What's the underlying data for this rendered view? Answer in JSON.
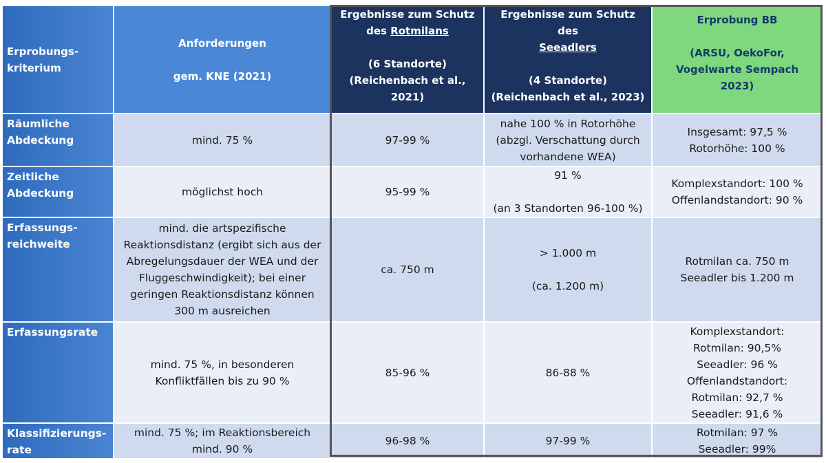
{
  "header": {
    "criterion": "Erprobungs-\nkriterium",
    "requirements": "Anforderungen\n\ngem. KNE (2021)",
    "rotmilan_pre": "Ergebnisse zum Schutz\ndes ",
    "rotmilan_species": "Rotmilans",
    "rotmilan_post": "\n\n(6 Standorte)\n(Reichenbach et al.,\n2021)",
    "seeadler_pre": "Ergebnisse zum Schutz des\n",
    "seeadler_species": "Seeadlers",
    "seeadler_post": "\n\n(4 Standorte)\n(Reichenbach et al., 2023)",
    "bb": "Erprobung BB\n\n(ARSU, OekoFor,\nVogelwarte Sempach\n2023)"
  },
  "rows": [
    {
      "criterion": "Räumliche\nAbdeckung",
      "requirement": "mind. 75 %",
      "rotmilan": "97-99 %",
      "seeadler": "nahe 100 % in Rotorhöhe\n(abzgl. Verschattung durch\nvorhandene WEA)",
      "bb": "Insgesamt: 97,5 %\nRotorhöhe: 100 %"
    },
    {
      "criterion": "Zeitliche\nAbdeckung",
      "requirement": "möglichst hoch",
      "rotmilan": "95-99 %",
      "seeadler": "91 %\n\n(an 3 Standorten 96-100 %)",
      "bb": "Komplexstandort: 100 %\nOffenlandstandort: 90 %"
    },
    {
      "criterion": "Erfassungs-\nreichweite",
      "requirement": "mind. die artspezifische\nReaktionsdistanz (ergibt sich aus der\nAbregelungsdauer der WEA und der\nFluggeschwindigkeit); bei einer\ngeringen Reaktionsdistanz können\n300 m ausreichen",
      "rotmilan": "ca. 750 m",
      "seeadler": "> 1.000 m\n\n(ca. 1.200 m)",
      "bb": "Rotmilan ca. 750 m\nSeeadler bis 1.200 m"
    },
    {
      "criterion": "Erfassungsrate",
      "requirement": "mind. 75 %, in besonderen\nKonfliktfällen bis zu 90 %",
      "rotmilan": "85-96 %",
      "seeadler": "86-88 %",
      "bb": "Komplexstandort:\nRotmilan: 90,5%\nSeeadler: 96 %\nOffenlandstandort:\nRotmilan: 92,7 %\nSeeadler: 91,6 %"
    },
    {
      "criterion": "Klassifizierungs-\nrate",
      "requirement": "mind. 75 %; im Reaktionsbereich\nmind. 90 %",
      "rotmilan": "96-98 %",
      "seeadler": "97-99 %",
      "bb": "Rotmilan: 97 %\nSeeadler: 99%"
    }
  ]
}
